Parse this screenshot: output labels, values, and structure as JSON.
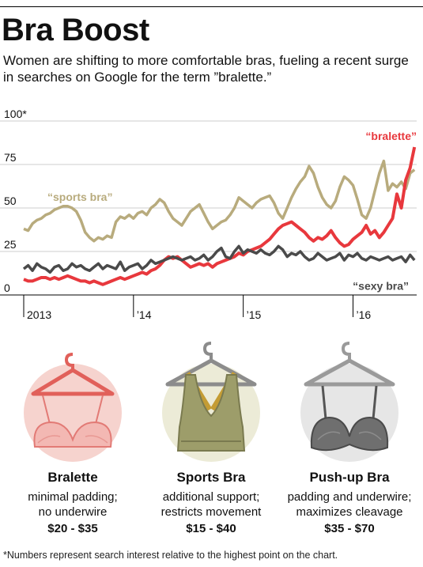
{
  "header": {
    "title": "Bra Boost",
    "subtitle": "Women are shifting to more comfortable bras, fueling a recent surge in searches on Google for the term ”bralette.”"
  },
  "chart_data": {
    "type": "line",
    "y_ticks": [
      {
        "value": 0,
        "label": "0"
      },
      {
        "value": 25,
        "label": "25"
      },
      {
        "value": 50,
        "label": "50"
      },
      {
        "value": 75,
        "label": "75"
      },
      {
        "value": 100,
        "label": "100*"
      }
    ],
    "ylim": [
      0,
      100
    ],
    "xlim": [
      2013.0,
      2016.58
    ],
    "x_ticks": [
      {
        "value": 2013,
        "label": "2013"
      },
      {
        "value": 2014,
        "label": "’14"
      },
      {
        "value": 2015,
        "label": "’15"
      },
      {
        "value": 2016,
        "label": "’16"
      }
    ],
    "grid": "horizontal",
    "series": [
      {
        "name": "“sports bra”",
        "color": "#b8ab7d",
        "label_pos": "left",
        "x": [
          2013.0,
          2013.04,
          2013.08,
          2013.12,
          2013.16,
          2013.2,
          2013.24,
          2013.28,
          2013.32,
          2013.36,
          2013.4,
          2013.44,
          2013.48,
          2013.52,
          2013.56,
          2013.6,
          2013.64,
          2013.68,
          2013.72,
          2013.76,
          2013.8,
          2013.84,
          2013.88,
          2013.92,
          2013.96,
          2014.0,
          2014.04,
          2014.08,
          2014.12,
          2014.16,
          2014.2,
          2014.24,
          2014.28,
          2014.32,
          2014.36,
          2014.4,
          2014.44,
          2014.48,
          2014.52,
          2014.56,
          2014.6,
          2014.64,
          2014.68,
          2014.72,
          2014.76,
          2014.8,
          2014.84,
          2014.88,
          2014.92,
          2014.96,
          2015.0,
          2015.04,
          2015.08,
          2015.12,
          2015.16,
          2015.2,
          2015.24,
          2015.28,
          2015.32,
          2015.36,
          2015.4,
          2015.44,
          2015.48,
          2015.52,
          2015.56,
          2015.6,
          2015.64,
          2015.68,
          2015.72,
          2015.76,
          2015.8,
          2015.84,
          2015.88,
          2015.92,
          2015.96,
          2016.0,
          2016.04,
          2016.08,
          2016.12,
          2016.16,
          2016.2,
          2016.24,
          2016.28,
          2016.32,
          2016.36,
          2016.4,
          2016.44,
          2016.48,
          2016.52,
          2016.56
        ],
        "values": [
          38,
          37,
          41,
          43,
          44,
          46,
          47,
          49,
          50,
          51,
          51,
          50,
          48,
          43,
          36,
          33,
          31,
          33,
          32,
          34,
          33,
          42,
          45,
          44,
          46,
          44,
          47,
          48,
          46,
          50,
          52,
          55,
          53,
          48,
          44,
          42,
          40,
          44,
          48,
          50,
          52,
          47,
          42,
          38,
          40,
          42,
          43,
          46,
          50,
          56,
          54,
          52,
          50,
          53,
          55,
          56,
          57,
          53,
          47,
          44,
          50,
          56,
          61,
          65,
          68,
          74,
          70,
          62,
          56,
          52,
          50,
          54,
          62,
          68,
          66,
          63,
          55,
          46,
          44,
          50,
          60,
          70,
          77,
          60,
          64,
          62,
          65,
          61,
          70,
          72
        ]
      },
      {
        "name": "“bralette”",
        "color": "#e8383d",
        "label_pos": "top-right",
        "x": [
          2013.0,
          2013.04,
          2013.08,
          2013.12,
          2013.16,
          2013.2,
          2013.24,
          2013.28,
          2013.32,
          2013.36,
          2013.4,
          2013.44,
          2013.48,
          2013.52,
          2013.56,
          2013.6,
          2013.64,
          2013.68,
          2013.72,
          2013.76,
          2013.8,
          2013.84,
          2013.88,
          2013.92,
          2013.96,
          2014.0,
          2014.04,
          2014.08,
          2014.12,
          2014.16,
          2014.2,
          2014.24,
          2014.28,
          2014.32,
          2014.36,
          2014.4,
          2014.44,
          2014.48,
          2014.52,
          2014.56,
          2014.6,
          2014.64,
          2014.68,
          2014.72,
          2014.76,
          2014.8,
          2014.84,
          2014.88,
          2014.92,
          2014.96,
          2015.0,
          2015.04,
          2015.08,
          2015.12,
          2015.16,
          2015.2,
          2015.24,
          2015.28,
          2015.32,
          2015.36,
          2015.4,
          2015.44,
          2015.48,
          2015.52,
          2015.56,
          2015.6,
          2015.64,
          2015.68,
          2015.72,
          2015.76,
          2015.8,
          2015.84,
          2015.88,
          2015.92,
          2015.96,
          2016.0,
          2016.04,
          2016.08,
          2016.12,
          2016.16,
          2016.2,
          2016.24,
          2016.28,
          2016.32,
          2016.36,
          2016.4,
          2016.44,
          2016.48,
          2016.52,
          2016.56
        ],
        "values": [
          9,
          8,
          8,
          9,
          10,
          10,
          9,
          10,
          9,
          10,
          11,
          10,
          9,
          8,
          8,
          7,
          8,
          7,
          6,
          7,
          8,
          9,
          10,
          9,
          10,
          11,
          12,
          13,
          12,
          14,
          15,
          17,
          20,
          22,
          21,
          22,
          20,
          18,
          16,
          17,
          18,
          17,
          18,
          16,
          18,
          19,
          20,
          21,
          22,
          24,
          23,
          25,
          26,
          27,
          28,
          30,
          32,
          35,
          38,
          40,
          41,
          42,
          40,
          38,
          36,
          33,
          31,
          33,
          32,
          34,
          37,
          33,
          30,
          28,
          29,
          32,
          34,
          36,
          40,
          35,
          37,
          33,
          36,
          40,
          44,
          58,
          50,
          66,
          73,
          85
        ]
      },
      {
        "name": "“sexy bra”",
        "color": "#4a4a4a",
        "label_pos": "bottom-right",
        "x": [
          2013.0,
          2013.04,
          2013.08,
          2013.12,
          2013.16,
          2013.2,
          2013.24,
          2013.28,
          2013.32,
          2013.36,
          2013.4,
          2013.44,
          2013.48,
          2013.52,
          2013.56,
          2013.6,
          2013.64,
          2013.68,
          2013.72,
          2013.76,
          2013.8,
          2013.84,
          2013.88,
          2013.92,
          2013.96,
          2014.0,
          2014.04,
          2014.08,
          2014.12,
          2014.16,
          2014.2,
          2014.24,
          2014.28,
          2014.32,
          2014.36,
          2014.4,
          2014.44,
          2014.48,
          2014.52,
          2014.56,
          2014.6,
          2014.64,
          2014.68,
          2014.72,
          2014.76,
          2014.8,
          2014.84,
          2014.88,
          2014.92,
          2014.96,
          2015.0,
          2015.04,
          2015.08,
          2015.12,
          2015.16,
          2015.2,
          2015.24,
          2015.28,
          2015.32,
          2015.36,
          2015.4,
          2015.44,
          2015.48,
          2015.52,
          2015.56,
          2015.6,
          2015.64,
          2015.68,
          2015.72,
          2015.76,
          2015.8,
          2015.84,
          2015.88,
          2015.92,
          2015.96,
          2016.0,
          2016.04,
          2016.08,
          2016.12,
          2016.16,
          2016.2,
          2016.24,
          2016.28,
          2016.32,
          2016.36,
          2016.4,
          2016.44,
          2016.48,
          2016.52,
          2016.56
        ],
        "values": [
          15,
          17,
          14,
          18,
          16,
          15,
          13,
          16,
          17,
          14,
          15,
          18,
          16,
          17,
          15,
          14,
          16,
          18,
          15,
          17,
          16,
          15,
          19,
          14,
          16,
          17,
          18,
          15,
          17,
          20,
          18,
          19,
          20,
          21,
          22,
          21,
          20,
          21,
          22,
          20,
          21,
          23,
          20,
          22,
          25,
          27,
          22,
          21,
          25,
          28,
          24,
          26,
          25,
          24,
          26,
          24,
          23,
          25,
          28,
          26,
          22,
          24,
          23,
          25,
          22,
          20,
          21,
          24,
          22,
          20,
          21,
          22,
          24,
          20,
          23,
          22,
          24,
          21,
          20,
          22,
          21,
          20,
          21,
          22,
          20,
          21,
          22,
          19,
          23,
          20
        ]
      }
    ]
  },
  "products": [
    {
      "name": "Bralette",
      "desc1": "minimal padding;",
      "desc2": "no underwire",
      "price": "$20 - $35"
    },
    {
      "name": "Sports Bra",
      "desc1": "additional support;",
      "desc2": "restricts movement",
      "price": "$15 - $40"
    },
    {
      "name": "Push-up Bra",
      "desc1": "padding and underwire;",
      "desc2": "maximizes cleavage",
      "price": "$35 - $70"
    }
  ],
  "footnote": "*Numbers represent search interest relative to the highest point on the chart."
}
